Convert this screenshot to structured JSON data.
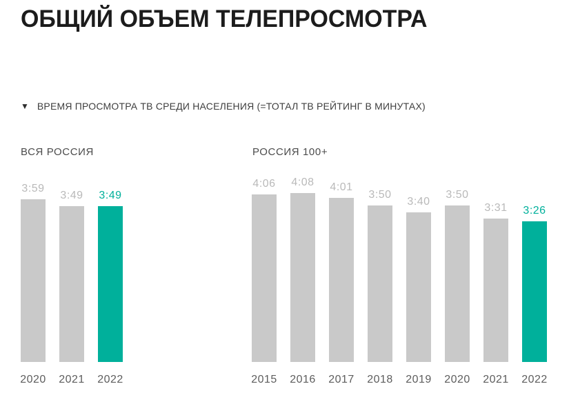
{
  "title": "ОБЩИЙ ОБЪЕМ ТЕЛЕПРОСМОТРА",
  "legend": {
    "marker": "▼",
    "text": "ВРЕМЯ ПРОСМОТРА ТВ СРЕДИ НАСЕЛЕНИЯ (=ТОТАЛ ТВ РЕЙТИНГ В МИНУТАХ)"
  },
  "colors": {
    "bar_default": "#c9c9c9",
    "bar_highlight": "#00b09b",
    "value_default": "#b9b9b9",
    "value_highlight": "#00b09b",
    "year_label": "#5d5d5d",
    "title": "#1c1c1c",
    "legend_text": "#3e3e3e",
    "chart_title": "#4b4b4b"
  },
  "chart_data": [
    {
      "type": "bar",
      "title": "ВСЯ РОССИЯ",
      "categories": [
        "2020",
        "2021",
        "2022"
      ],
      "values": [
        "3:59",
        "3:49",
        "3:49"
      ],
      "values_minutes": [
        239,
        229,
        229
      ],
      "highlight_index": 2,
      "unit": "hours:minutes",
      "grid": false,
      "value_labels": "above-bars",
      "legend_position": "none"
    },
    {
      "type": "bar",
      "title": "РОССИЯ 100+",
      "categories": [
        "2015",
        "2016",
        "2017",
        "2018",
        "2019",
        "2020",
        "2021",
        "2022"
      ],
      "values": [
        "4:06",
        "4:08",
        "4:01",
        "3:50",
        "3:40",
        "3:50",
        "3:31",
        "3:26"
      ],
      "values_minutes": [
        246,
        248,
        241,
        230,
        220,
        230,
        211,
        206
      ],
      "highlight_index": 7,
      "unit": "hours:minutes",
      "grid": false,
      "value_labels": "above-bars",
      "legend_position": "none"
    }
  ]
}
